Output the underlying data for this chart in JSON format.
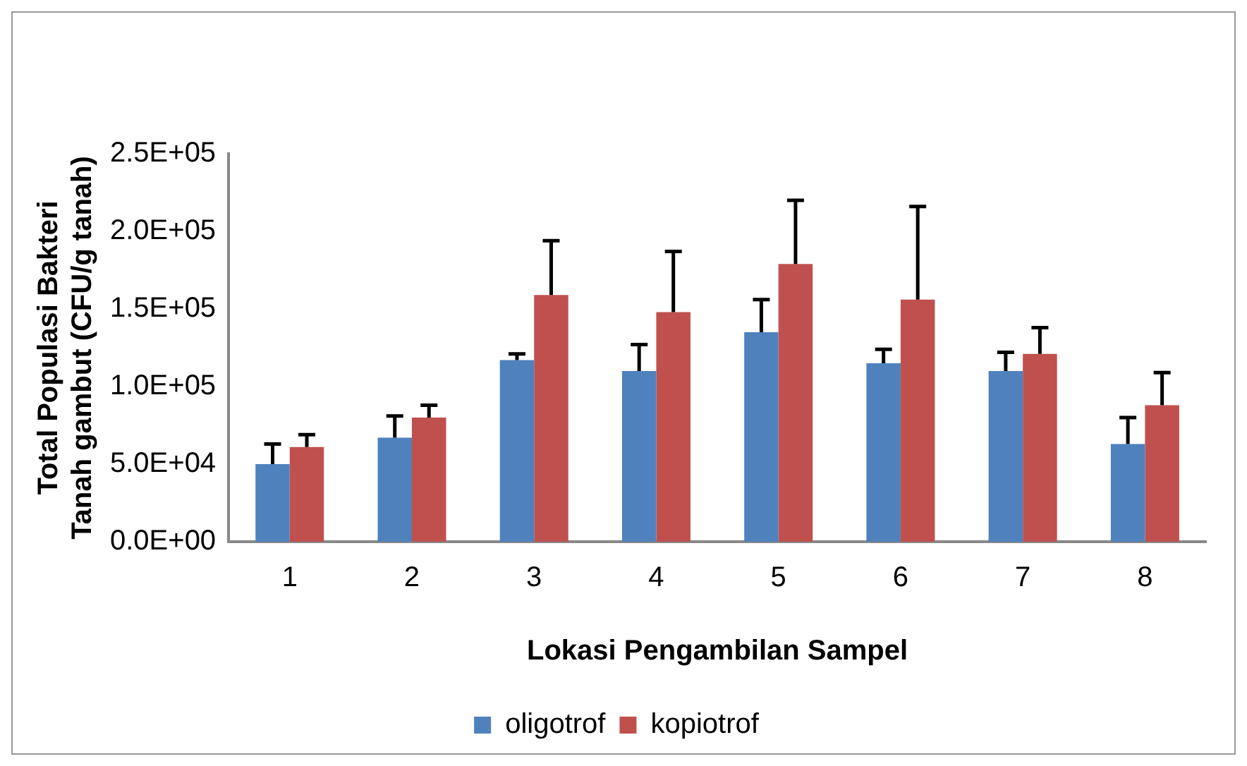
{
  "chart_data": {
    "type": "bar",
    "xlabel": "Lokasi Pengambilan Sampel",
    "ylabel": "Total Populasi Bakteri\nTanah gambut (CFU/g tanah)",
    "categories": [
      "1",
      "2",
      "3",
      "4",
      "5",
      "6",
      "7",
      "8"
    ],
    "series": [
      {
        "name": "oligotrof",
        "color": "#4f81bd",
        "values": [
          50000,
          67000,
          117000,
          110000,
          135000,
          115000,
          110000,
          63000
        ],
        "errors": [
          [
            50000,
            63000
          ],
          [
            67000,
            81000
          ],
          [
            117000,
            121000
          ],
          [
            110000,
            127000
          ],
          [
            135000,
            156000
          ],
          [
            115000,
            124000
          ],
          [
            110000,
            122000
          ],
          [
            63000,
            80000
          ]
        ]
      },
      {
        "name": "kopiotrof",
        "color": "#c0504d",
        "values": [
          61000,
          80000,
          159000,
          148000,
          179000,
          156000,
          121000,
          88000
        ],
        "errors": [
          [
            61000,
            69000
          ],
          [
            80000,
            88000
          ],
          [
            159000,
            194000
          ],
          [
            148000,
            187000
          ],
          [
            179000,
            220000
          ],
          [
            156000,
            216000
          ],
          [
            121000,
            138000
          ],
          [
            88000,
            109000
          ]
        ]
      }
    ],
    "ylim": [
      0,
      250000
    ],
    "yticks": [
      {
        "value": 0,
        "label": "0.0E+00"
      },
      {
        "value": 50000,
        "label": "5.0E+04"
      },
      {
        "value": 100000,
        "label": "1.0E+05"
      },
      {
        "value": 150000,
        "label": "1.5E+05"
      },
      {
        "value": 200000,
        "label": "2.0E+05"
      },
      {
        "value": 250000,
        "label": "2.5E+05"
      }
    ],
    "grid": false,
    "legend": "bottom"
  }
}
